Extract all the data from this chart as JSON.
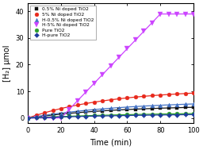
{
  "title": "",
  "xlabel": "Time (min)",
  "ylabel": "[H₂] μmol",
  "xlim": [
    0,
    100
  ],
  "ylim": [
    -2,
    43
  ],
  "xticks": [
    0,
    20,
    40,
    60,
    80,
    100
  ],
  "yticks": [
    0,
    10,
    20,
    30,
    40
  ],
  "series": [
    {
      "label": "0.5% Ni doped TiO2",
      "color": "#111111",
      "marker": "s",
      "markersize": 3.5,
      "final_value": 4.8,
      "lag": 0,
      "tau": 55,
      "shape": "slow_sat"
    },
    {
      "label": "5% Ni doped TiO2",
      "color": "#e8291c",
      "marker": "o",
      "markersize": 3.5,
      "final_value": 10.8,
      "lag": 0,
      "tau": 50,
      "shape": "slow_sat"
    },
    {
      "label": "H-0.5% Ni doped TiO2",
      "color": "#4472c4",
      "marker": "^",
      "markersize": 3.5,
      "final_value": 6.5,
      "lag": 0,
      "tau": 60,
      "shape": "slow_sat"
    },
    {
      "label": "H-5% Ni doped TiO2",
      "color": "#cc44ff",
      "marker": "v",
      "markersize": 4.5,
      "final_value": 41.5,
      "lag": 20,
      "rate": 0.65,
      "plateau": 80,
      "shape": "linear_plateau"
    },
    {
      "label": "Pure TiO2",
      "color": "#2ca02c",
      "marker": "o",
      "markersize": 3.5,
      "final_value": 2.2,
      "lag": 0,
      "tau": 70,
      "shape": "slow_sat"
    },
    {
      "label": "H-pure TiO2",
      "color": "#1f3c9e",
      "marker": "D",
      "markersize": 3.0,
      "final_value": 1.8,
      "lag": 0,
      "tau": 80,
      "shape": "slow_sat"
    }
  ],
  "background_color": "#ffffff",
  "plot_bg_color": "#ffffff",
  "figsize": [
    2.56,
    1.89
  ],
  "dpi": 100
}
